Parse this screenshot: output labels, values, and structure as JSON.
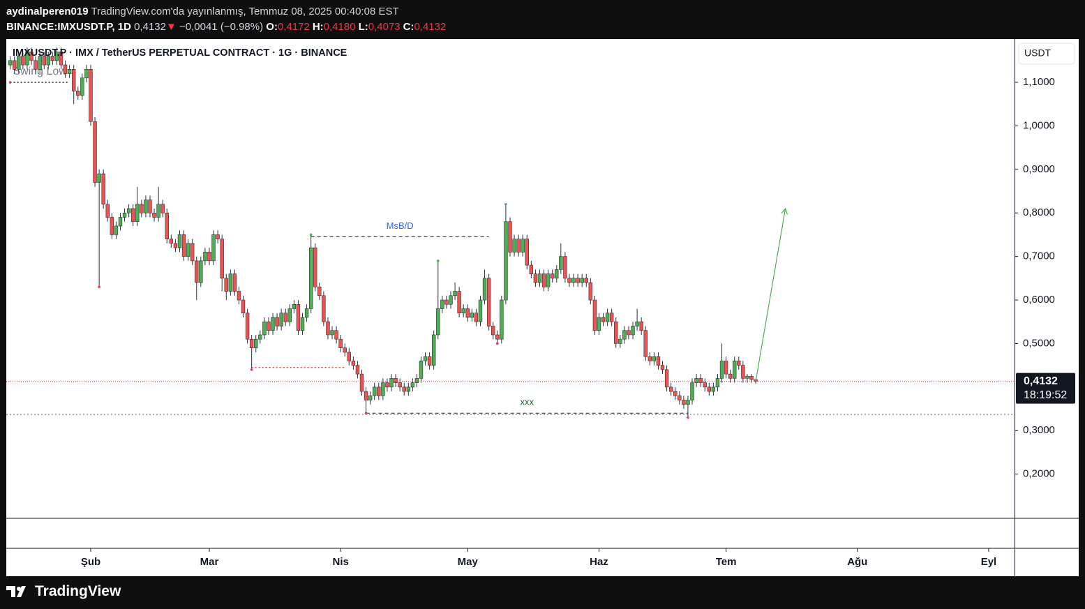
{
  "header": {
    "author": "aydinalperen019",
    "published": "TradingView.com'da yayınlanmış, Temmuz 08, 2025 00:40:08 EST",
    "symbol": "BINANCE:IMXUSDT.P, 1D",
    "last": "0,4132",
    "change_arrow": "▼",
    "change": "−0,0041 (−0.98%)",
    "ohlc": [
      {
        "label": "O:",
        "value": "0,4172"
      },
      {
        "label": "H:",
        "value": "0,4180"
      },
      {
        "label": "L:",
        "value": "0,4073"
      },
      {
        "label": "C:",
        "value": "0,4132"
      }
    ]
  },
  "chart_data": {
    "type": "candlestick",
    "title": "IMXUSDT.P · IMX / TetherUS PERPETUAL CONTRACT · 1G · BINANCE",
    "currency": "USDT",
    "colors": {
      "up": "#4caf50",
      "down": "#ef5350"
    },
    "x": [
      -19,
      -18,
      -17,
      -16,
      -15,
      -14,
      -13,
      -12,
      -11,
      -10,
      -9,
      -8,
      -7,
      -6,
      -5,
      -4,
      -3,
      -2,
      -1,
      0,
      1,
      2,
      3,
      4,
      5,
      6,
      7,
      8,
      9,
      10,
      11,
      12,
      13,
      14,
      15,
      16,
      17,
      18,
      19,
      20,
      21,
      22,
      23,
      24,
      25,
      26,
      27,
      28,
      29,
      30,
      31,
      32,
      33,
      34,
      35,
      36,
      37,
      38,
      39,
      40,
      41,
      42,
      43,
      44,
      45,
      46,
      47,
      48,
      49,
      50,
      51,
      52,
      53,
      54,
      55,
      56,
      57,
      58,
      59,
      60,
      61,
      62,
      63,
      64,
      65,
      66,
      67,
      68,
      69,
      70,
      71,
      72,
      73,
      74,
      75,
      76,
      77,
      78,
      79,
      80,
      81,
      82,
      83,
      84,
      85,
      86,
      87,
      88,
      89,
      90,
      91,
      92,
      93,
      94,
      95,
      96,
      97,
      98,
      99,
      100,
      101,
      102,
      103,
      104,
      105,
      106,
      107,
      108,
      109,
      110,
      111,
      112,
      113,
      114,
      115,
      116,
      117,
      118,
      119,
      120,
      121,
      122,
      123,
      124,
      125,
      126,
      127,
      128,
      129,
      130,
      131,
      132,
      133,
      134,
      135,
      136,
      137,
      138,
      139,
      140,
      141,
      142,
      143,
      144,
      145,
      146,
      147,
      148,
      149,
      150,
      151,
      152,
      153,
      154,
      155,
      156,
      157
    ],
    "open": [
      1.14,
      1.15,
      1.13,
      1.16,
      1.14,
      1.17,
      1.15,
      1.13,
      1.16,
      1.14,
      1.16,
      1.15,
      1.17,
      1.14,
      1.12,
      1.13,
      1.08,
      1.07,
      1.11,
      1.13,
      1.01,
      0.87,
      0.89,
      0.82,
      0.79,
      0.75,
      0.77,
      0.79,
      0.8,
      0.81,
      0.78,
      0.82,
      0.8,
      0.83,
      0.8,
      0.79,
      0.82,
      0.8,
      0.74,
      0.73,
      0.72,
      0.75,
      0.7,
      0.73,
      0.69,
      0.64,
      0.69,
      0.71,
      0.69,
      0.75,
      0.74,
      0.65,
      0.62,
      0.66,
      0.62,
      0.6,
      0.57,
      0.51,
      0.49,
      0.51,
      0.52,
      0.55,
      0.53,
      0.56,
      0.54,
      0.57,
      0.55,
      0.58,
      0.59,
      0.53,
      0.56,
      0.58,
      0.72,
      0.63,
      0.61,
      0.55,
      0.52,
      0.53,
      0.51,
      0.49,
      0.48,
      0.46,
      0.45,
      0.43,
      0.39,
      0.37,
      0.38,
      0.4,
      0.38,
      0.41,
      0.4,
      0.42,
      0.41,
      0.4,
      0.39,
      0.4,
      0.41,
      0.42,
      0.46,
      0.47,
      0.45,
      0.52,
      0.58,
      0.6,
      0.59,
      0.61,
      0.62,
      0.57,
      0.58,
      0.56,
      0.57,
      0.55,
      0.6,
      0.65,
      0.54,
      0.52,
      0.51,
      0.6,
      0.78,
      0.71,
      0.74,
      0.71,
      0.74,
      0.68,
      0.66,
      0.64,
      0.66,
      0.63,
      0.66,
      0.65,
      0.67,
      0.7,
      0.65,
      0.64,
      0.65,
      0.64,
      0.65,
      0.64,
      0.6,
      0.53,
      0.56,
      0.55,
      0.57,
      0.55,
      0.5,
      0.51,
      0.53,
      0.52,
      0.54,
      0.55,
      0.53,
      0.47,
      0.46,
      0.47,
      0.45,
      0.44,
      0.4,
      0.39,
      0.38,
      0.37,
      0.36,
      0.37,
      0.41,
      0.42,
      0.41,
      0.4,
      0.39,
      0.4,
      0.42,
      0.46,
      0.43,
      0.42,
      0.46,
      0.45,
      0.42,
      0.425,
      0.4172
    ],
    "high": [
      1.16,
      1.16,
      1.17,
      1.17,
      1.18,
      1.18,
      1.16,
      1.17,
      1.17,
      1.17,
      1.17,
      1.18,
      1.18,
      1.15,
      1.14,
      1.14,
      1.09,
      1.12,
      1.14,
      1.14,
      1.02,
      0.9,
      0.9,
      0.83,
      0.8,
      0.78,
      0.8,
      0.81,
      0.82,
      0.82,
      0.86,
      0.83,
      0.84,
      0.84,
      0.81,
      0.86,
      0.83,
      0.81,
      0.75,
      0.74,
      0.76,
      0.76,
      0.74,
      0.74,
      0.7,
      0.7,
      0.72,
      0.72,
      0.76,
      0.76,
      0.75,
      0.66,
      0.67,
      0.67,
      0.63,
      0.61,
      0.58,
      0.52,
      0.52,
      0.53,
      0.56,
      0.56,
      0.57,
      0.57,
      0.58,
      0.58,
      0.59,
      0.6,
      0.6,
      0.57,
      0.59,
      0.75,
      0.73,
      0.64,
      0.62,
      0.56,
      0.54,
      0.54,
      0.52,
      0.5,
      0.49,
      0.47,
      0.46,
      0.44,
      0.4,
      0.39,
      0.41,
      0.41,
      0.42,
      0.42,
      0.43,
      0.43,
      0.42,
      0.41,
      0.41,
      0.42,
      0.43,
      0.47,
      0.48,
      0.48,
      0.53,
      0.69,
      0.61,
      0.61,
      0.62,
      0.64,
      0.63,
      0.59,
      0.59,
      0.58,
      0.58,
      0.61,
      0.67,
      0.66,
      0.55,
      0.53,
      0.61,
      0.82,
      0.79,
      0.75,
      0.75,
      0.75,
      0.75,
      0.69,
      0.67,
      0.67,
      0.67,
      0.67,
      0.67,
      0.68,
      0.73,
      0.71,
      0.66,
      0.66,
      0.66,
      0.66,
      0.66,
      0.65,
      0.61,
      0.57,
      0.57,
      0.58,
      0.58,
      0.56,
      0.52,
      0.54,
      0.54,
      0.55,
      0.58,
      0.56,
      0.54,
      0.48,
      0.48,
      0.48,
      0.46,
      0.45,
      0.41,
      0.4,
      0.39,
      0.38,
      0.38,
      0.42,
      0.43,
      0.43,
      0.42,
      0.41,
      0.41,
      0.43,
      0.5,
      0.47,
      0.44,
      0.47,
      0.47,
      0.46,
      0.43,
      0.43,
      0.418
    ],
    "low": [
      1.13,
      1.12,
      1.12,
      1.13,
      1.13,
      1.14,
      1.12,
      1.12,
      1.13,
      1.13,
      1.14,
      1.14,
      1.13,
      1.11,
      1.11,
      1.05,
      1.06,
      1.06,
      1.1,
      1.0,
      0.86,
      0.63,
      0.81,
      0.78,
      0.74,
      0.74,
      0.76,
      0.78,
      0.79,
      0.77,
      0.77,
      0.79,
      0.79,
      0.79,
      0.78,
      0.78,
      0.79,
      0.73,
      0.72,
      0.71,
      0.71,
      0.69,
      0.69,
      0.68,
      0.6,
      0.63,
      0.68,
      0.68,
      0.68,
      0.73,
      0.62,
      0.6,
      0.61,
      0.61,
      0.59,
      0.56,
      0.5,
      0.44,
      0.48,
      0.5,
      0.51,
      0.52,
      0.52,
      0.53,
      0.53,
      0.54,
      0.54,
      0.57,
      0.52,
      0.52,
      0.55,
      0.57,
      0.62,
      0.6,
      0.54,
      0.51,
      0.51,
      0.5,
      0.48,
      0.47,
      0.45,
      0.44,
      0.42,
      0.38,
      0.34,
      0.36,
      0.37,
      0.37,
      0.37,
      0.39,
      0.39,
      0.4,
      0.39,
      0.38,
      0.38,
      0.39,
      0.4,
      0.41,
      0.45,
      0.44,
      0.44,
      0.51,
      0.57,
      0.58,
      0.58,
      0.6,
      0.56,
      0.56,
      0.55,
      0.55,
      0.54,
      0.54,
      0.59,
      0.53,
      0.51,
      0.5,
      0.5,
      0.59,
      0.7,
      0.7,
      0.7,
      0.7,
      0.67,
      0.65,
      0.63,
      0.63,
      0.62,
      0.62,
      0.64,
      0.64,
      0.66,
      0.64,
      0.63,
      0.63,
      0.63,
      0.63,
      0.63,
      0.59,
      0.52,
      0.52,
      0.54,
      0.54,
      0.54,
      0.49,
      0.49,
      0.5,
      0.51,
      0.51,
      0.53,
      0.52,
      0.46,
      0.45,
      0.45,
      0.44,
      0.43,
      0.39,
      0.38,
      0.37,
      0.36,
      0.35,
      0.33,
      0.36,
      0.4,
      0.4,
      0.39,
      0.38,
      0.38,
      0.39,
      0.41,
      0.42,
      0.41,
      0.41,
      0.44,
      0.41,
      0.41,
      0.41,
      0.4073
    ],
    "close": [
      1.15,
      1.13,
      1.16,
      1.14,
      1.17,
      1.15,
      1.13,
      1.16,
      1.14,
      1.16,
      1.15,
      1.17,
      1.14,
      1.12,
      1.13,
      1.08,
      1.07,
      1.11,
      1.13,
      1.01,
      0.87,
      0.89,
      0.82,
      0.79,
      0.75,
      0.77,
      0.79,
      0.8,
      0.81,
      0.78,
      0.82,
      0.8,
      0.83,
      0.8,
      0.79,
      0.82,
      0.8,
      0.74,
      0.73,
      0.72,
      0.75,
      0.7,
      0.73,
      0.69,
      0.64,
      0.69,
      0.71,
      0.69,
      0.75,
      0.74,
      0.65,
      0.62,
      0.66,
      0.62,
      0.6,
      0.57,
      0.51,
      0.49,
      0.51,
      0.52,
      0.55,
      0.53,
      0.56,
      0.54,
      0.57,
      0.55,
      0.58,
      0.59,
      0.53,
      0.56,
      0.58,
      0.72,
      0.63,
      0.61,
      0.55,
      0.52,
      0.53,
      0.51,
      0.49,
      0.48,
      0.46,
      0.45,
      0.43,
      0.39,
      0.37,
      0.38,
      0.4,
      0.38,
      0.41,
      0.4,
      0.42,
      0.41,
      0.4,
      0.39,
      0.4,
      0.41,
      0.42,
      0.46,
      0.47,
      0.45,
      0.52,
      0.58,
      0.6,
      0.59,
      0.61,
      0.62,
      0.57,
      0.58,
      0.56,
      0.57,
      0.55,
      0.6,
      0.65,
      0.54,
      0.52,
      0.51,
      0.6,
      0.78,
      0.71,
      0.74,
      0.71,
      0.74,
      0.68,
      0.66,
      0.64,
      0.66,
      0.63,
      0.66,
      0.65,
      0.67,
      0.7,
      0.65,
      0.64,
      0.65,
      0.64,
      0.65,
      0.64,
      0.6,
      0.53,
      0.56,
      0.55,
      0.57,
      0.55,
      0.5,
      0.51,
      0.53,
      0.52,
      0.54,
      0.55,
      0.53,
      0.47,
      0.46,
      0.47,
      0.45,
      0.44,
      0.4,
      0.39,
      0.38,
      0.37,
      0.36,
      0.37,
      0.41,
      0.42,
      0.41,
      0.4,
      0.39,
      0.4,
      0.42,
      0.46,
      0.43,
      0.42,
      0.46,
      0.45,
      0.42,
      0.425,
      0.4173,
      0.4132
    ],
    "xlim": [
      -19.93,
      218.1
    ],
    "xticks": [
      {
        "value": 0,
        "label": "Şub"
      },
      {
        "value": 28,
        "label": "Mar"
      },
      {
        "value": 59,
        "label": "Nis"
      },
      {
        "value": 89,
        "label": "May"
      },
      {
        "value": 120,
        "label": "Haz"
      },
      {
        "value": 150,
        "label": "Tem"
      },
      {
        "value": 181,
        "label": "Ağu"
      },
      {
        "value": 212,
        "label": "Eyl"
      }
    ],
    "ylim": [
      0.0985,
      1.1978
    ],
    "yticks": [
      {
        "value": 0.2,
        "label": "0,2000"
      },
      {
        "value": 0.3,
        "label": "0,3000"
      },
      {
        "value": 0.5,
        "label": "0,5000"
      },
      {
        "value": 0.6,
        "label": "0,6000"
      },
      {
        "value": 0.7,
        "label": "0,7000"
      },
      {
        "value": 0.8,
        "label": "0,8000"
      },
      {
        "value": 0.9,
        "label": "0,9000"
      },
      {
        "value": 1.0,
        "label": "1,0000"
      },
      {
        "value": 1.1,
        "label": "1,1000"
      }
    ],
    "grid": false,
    "price_tag": {
      "price": "0,4132",
      "countdown": "18:19:52"
    },
    "lines": [
      {
        "price": 1.1,
        "x": [
          -19,
          -5
        ],
        "style": "dotted",
        "color": "#131722",
        "label": "Swing Low",
        "label_color": "#787b86"
      },
      {
        "price": 0.745,
        "x": [
          52,
          94
        ],
        "style": "dashed",
        "color": "#131722",
        "label": "MsB/D",
        "label_color": "#2962ff"
      },
      {
        "price": 0.445,
        "x": [
          38,
          60
        ],
        "style": "dotted",
        "color": "#f23645"
      },
      {
        "price": 0.34,
        "x": [
          65,
          141
        ],
        "style": "dashed",
        "color": "#131722",
        "label": "xxx",
        "label_color": "#1b5e20"
      },
      {
        "price": 0.337,
        "style": "dotted",
        "color": "#9598a1"
      }
    ],
    "pivots": [
      {
        "x": -19,
        "price": 1.1,
        "color": "#f23645"
      },
      {
        "x": 2,
        "price": 0.63,
        "color": "#f23645"
      },
      {
        "x": 38,
        "price": 0.44,
        "color": "#f23645"
      },
      {
        "x": 52,
        "price": 0.75,
        "color": "#4caf50"
      },
      {
        "x": 65,
        "price": 0.34,
        "color": "#f23645"
      },
      {
        "x": 82,
        "price": 0.69,
        "color": "#4caf50"
      },
      {
        "x": 96,
        "price": 0.5,
        "color": "#f23645"
      },
      {
        "x": 98,
        "price": 0.82,
        "color": "#4caf50"
      },
      {
        "x": 141,
        "price": 0.33,
        "color": "#f23645"
      }
    ],
    "arrow": {
      "x": [
        157,
        164
      ],
      "price": [
        0.4132,
        0.81
      ],
      "color": "#4caf50"
    }
  },
  "footer": {
    "brand": "TradingView"
  }
}
